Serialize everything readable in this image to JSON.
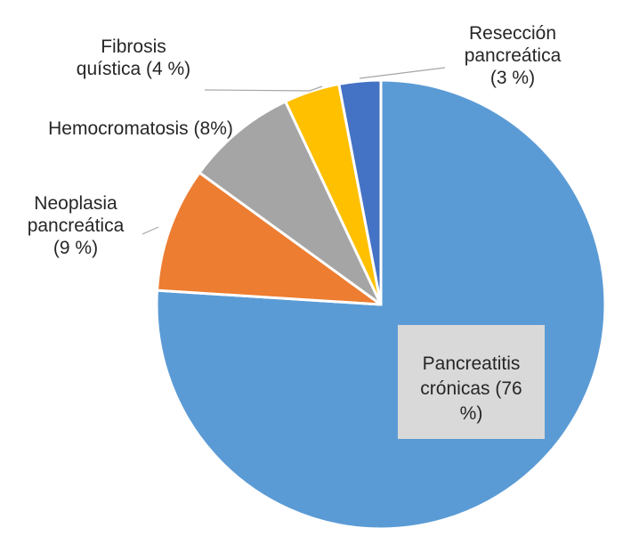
{
  "chart_data": {
    "type": "pie",
    "slices": [
      {
        "label": "Pancreatitis crónicas (76 %)",
        "lines": [
          "Pancreatitis",
          "crónicas (76",
          "%)"
        ],
        "value": 76,
        "color": "#5b9bd5"
      },
      {
        "label": "Neoplasia pancreática (9 %)",
        "lines": [
          "Neoplasia",
          "pancreática",
          "(9 %)"
        ],
        "value": 9,
        "color": "#ed7d31"
      },
      {
        "label": "Hemocromatosis (8%)",
        "lines": [
          "Hemocromatosis (8%)"
        ],
        "value": 8,
        "color": "#a5a5a5"
      },
      {
        "label": "Fibrosis quística (4 %)",
        "lines": [
          "Fibrosis",
          "quística (4 %)"
        ],
        "value": 4,
        "color": "#ffc000"
      },
      {
        "label": "Resección pancreática (3 %)",
        "lines": [
          "Resección",
          "pancreática",
          "(3 %)"
        ],
        "value": 3,
        "color": "#4472c4"
      }
    ]
  }
}
